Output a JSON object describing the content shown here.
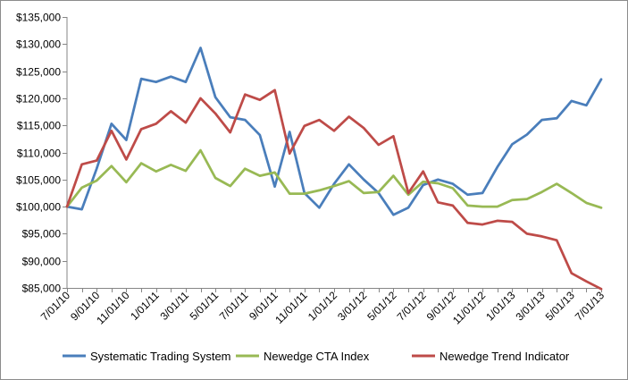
{
  "chart_data": {
    "type": "line",
    "title": "",
    "xlabel": "",
    "ylabel": "",
    "ylim": [
      85000,
      135000
    ],
    "y_ticks": [
      "$85,000",
      "$90,000",
      "$95,000",
      "$100,000",
      "$105,000",
      "$110,000",
      "$115,000",
      "$120,000",
      "$125,000",
      "$130,000",
      "$135,000"
    ],
    "x_tick_labels": [
      "7/01/10",
      "9/01/10",
      "11/01/10",
      "1/01/11",
      "3/01/11",
      "5/01/11",
      "7/01/11",
      "9/01/11",
      "11/01/11",
      "1/01/12",
      "3/01/12",
      "5/01/12",
      "7/01/12",
      "9/01/12",
      "11/01/12",
      "1/01/13",
      "3/01/13",
      "5/01/13",
      "7/01/13"
    ],
    "x_point_count": 37,
    "grid": false,
    "legend_position": "bottom",
    "series": [
      {
        "name": "Systematic Trading System",
        "color": "#4a7ebb",
        "values": [
          100000,
          99500,
          107000,
          115300,
          112300,
          123600,
          123000,
          124000,
          123000,
          129300,
          120200,
          116500,
          116000,
          113200,
          103700,
          113800,
          102500,
          99800,
          104200,
          107800,
          105000,
          102500,
          98500,
          99800,
          104000,
          105000,
          104200,
          102200,
          102500,
          107300,
          111500,
          113300,
          116000,
          116300,
          119500,
          118700,
          123500
        ]
      },
      {
        "name": "Newedge CTA Index",
        "color": "#98b954",
        "values": [
          100000,
          103500,
          104800,
          107500,
          104500,
          108000,
          106500,
          107700,
          106600,
          110400,
          105300,
          103800,
          107000,
          105700,
          106300,
          102400,
          102400,
          103000,
          103800,
          104700,
          102500,
          102700,
          105700,
          102200,
          104600,
          104300,
          103400,
          100200,
          100000,
          100000,
          101200,
          101400,
          102700,
          104200,
          102500,
          100700,
          99800
        ]
      },
      {
        "name": "Newedge Trend Indicator",
        "color": "#be4b48",
        "values": [
          100000,
          107800,
          108500,
          114000,
          108700,
          114300,
          115300,
          117600,
          115500,
          120000,
          117200,
          113700,
          120700,
          119700,
          121500,
          109800,
          114900,
          116000,
          114000,
          116600,
          114500,
          111400,
          113000,
          102500,
          106500,
          100800,
          100200,
          97000,
          96700,
          97400,
          97200,
          95000,
          94500,
          93800,
          87700,
          86200,
          84800
        ]
      }
    ]
  }
}
